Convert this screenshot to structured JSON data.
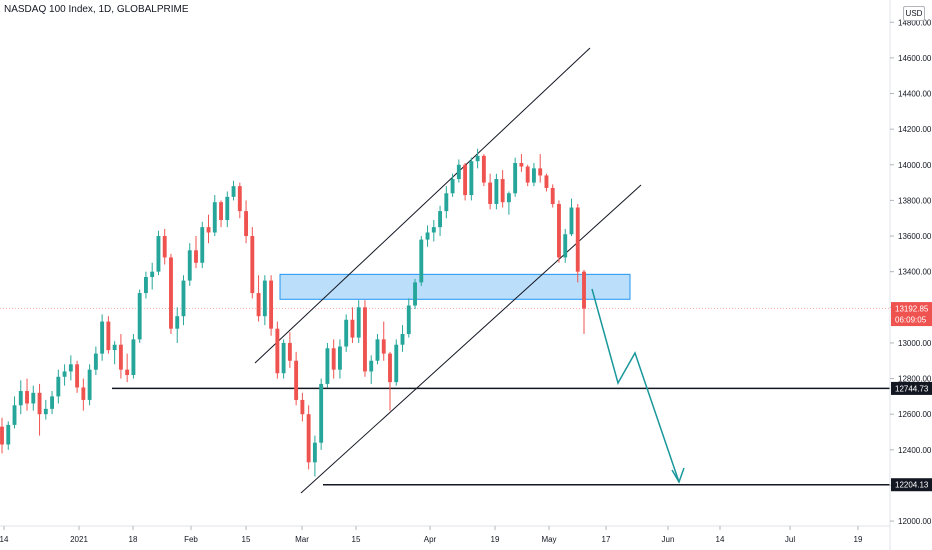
{
  "header": {
    "title": "NASDAQ 100 Index, 1D, GLOBALPRIME",
    "currency": "USD"
  },
  "chart_data": {
    "type": "candlestick",
    "y_ticks": [
      "14800.00",
      "14600.00",
      "14400.00",
      "14200.00",
      "14000.00",
      "13800.00",
      "13600.00",
      "13400.00",
      "13200.00",
      "13000.00",
      "12800.00",
      "12600.00",
      "12400.00",
      "12200.00",
      "12000.00"
    ],
    "x_ticks": [
      "14",
      "2021",
      "18",
      "Feb",
      "15",
      "Mar",
      "15",
      "Apr",
      "19",
      "May",
      "17",
      "Jun",
      "14",
      "Jul",
      "19"
    ],
    "ylim": [
      11950,
      14880
    ],
    "price_tag": {
      "value": "13192.85",
      "countdown": "06:09:05"
    },
    "level_tags": [
      "12744.73",
      "12204.13"
    ],
    "levels": [
      12744.73,
      12204.13
    ],
    "supply_zone": [
      13245,
      13385
    ],
    "colors": {
      "up": "#26a69a",
      "down": "#ef5350",
      "zone": "#bbdefb",
      "zone_border": "#2196f3",
      "projection": "#19979b"
    },
    "candles": [
      [
        12530,
        12580,
        12380,
        12430
      ],
      [
        12430,
        12560,
        12400,
        12540
      ],
      [
        12540,
        12700,
        12520,
        12650
      ],
      [
        12650,
        12790,
        12600,
        12730
      ],
      [
        12730,
        12800,
        12620,
        12660
      ],
      [
        12660,
        12760,
        12620,
        12720
      ],
      [
        12720,
        12770,
        12480,
        12600
      ],
      [
        12600,
        12680,
        12570,
        12630
      ],
      [
        12630,
        12730,
        12600,
        12700
      ],
      [
        12700,
        12850,
        12660,
        12810
      ],
      [
        12810,
        12880,
        12760,
        12840
      ],
      [
        12840,
        12930,
        12790,
        12880
      ],
      [
        12880,
        12900,
        12720,
        12750
      ],
      [
        12750,
        12800,
        12620,
        12680
      ],
      [
        12680,
        12880,
        12650,
        12850
      ],
      [
        12850,
        12980,
        12820,
        12940
      ],
      [
        12940,
        13160,
        12900,
        13120
      ],
      [
        13120,
        13150,
        12940,
        12960
      ],
      [
        12960,
        13010,
        12880,
        12990
      ],
      [
        12990,
        13050,
        12800,
        12850
      ],
      [
        12850,
        12940,
        12780,
        12820
      ],
      [
        12820,
        13050,
        12800,
        13020
      ],
      [
        13020,
        13300,
        13000,
        13280
      ],
      [
        13280,
        13400,
        13250,
        13370
      ],
      [
        13370,
        13450,
        13300,
        13400
      ],
      [
        13400,
        13630,
        13380,
        13600
      ],
      [
        13600,
        13640,
        13440,
        13480
      ],
      [
        13480,
        13500,
        13050,
        13080
      ],
      [
        13080,
        13200,
        13000,
        13150
      ],
      [
        13150,
        13380,
        13100,
        13350
      ],
      [
        13350,
        13560,
        13320,
        13520
      ],
      [
        13520,
        13600,
        13420,
        13450
      ],
      [
        13450,
        13680,
        13420,
        13650
      ],
      [
        13650,
        13720,
        13560,
        13620
      ],
      [
        13620,
        13830,
        13600,
        13790
      ],
      [
        13790,
        13800,
        13650,
        13690
      ],
      [
        13690,
        13850,
        13650,
        13820
      ],
      [
        13820,
        13910,
        13800,
        13880
      ],
      [
        13880,
        13900,
        13700,
        13740
      ],
      [
        13740,
        13800,
        13560,
        13600
      ],
      [
        13600,
        13650,
        13250,
        13280
      ],
      [
        13280,
        13380,
        13120,
        13150
      ],
      [
        13150,
        13380,
        13100,
        13350
      ],
      [
        13350,
        13380,
        13040,
        13080
      ],
      [
        13080,
        13120,
        12800,
        12830
      ],
      [
        12830,
        13020,
        12800,
        13000
      ],
      [
        13000,
        13060,
        12860,
        12900
      ],
      [
        12900,
        12950,
        12650,
        12680
      ],
      [
        12680,
        12720,
        12560,
        12600
      ],
      [
        12600,
        12650,
        12290,
        12330
      ],
      [
        12330,
        12480,
        12250,
        12440
      ],
      [
        12440,
        12800,
        12400,
        12770
      ],
      [
        12770,
        13000,
        12750,
        12970
      ],
      [
        12970,
        13020,
        12800,
        12850
      ],
      [
        12850,
        13020,
        12800,
        12980
      ],
      [
        12980,
        13160,
        12950,
        13130
      ],
      [
        13130,
        13200,
        13000,
        13030
      ],
      [
        13030,
        13240,
        13000,
        13200
      ],
      [
        13200,
        13240,
        12810,
        12840
      ],
      [
        12840,
        12930,
        12770,
        12900
      ],
      [
        12900,
        13050,
        12880,
        13020
      ],
      [
        13020,
        13120,
        12900,
        12940
      ],
      [
        12940,
        12950,
        12620,
        12780
      ],
      [
        12780,
        13020,
        12760,
        12990
      ],
      [
        12990,
        13100,
        12950,
        13050
      ],
      [
        13050,
        13250,
        13030,
        13210
      ],
      [
        13210,
        13360,
        13190,
        13340
      ],
      [
        13340,
        13600,
        13320,
        13580
      ],
      [
        13580,
        13660,
        13540,
        13620
      ],
      [
        13620,
        13690,
        13570,
        13650
      ],
      [
        13650,
        13770,
        13600,
        13740
      ],
      [
        13740,
        13880,
        13700,
        13840
      ],
      [
        13840,
        13950,
        13820,
        13920
      ],
      [
        13920,
        14030,
        13900,
        14000
      ],
      [
        14000,
        14010,
        13800,
        13830
      ],
      [
        13830,
        14040,
        13800,
        14020
      ],
      [
        14020,
        14090,
        13980,
        14050
      ],
      [
        14050,
        14060,
        13880,
        13900
      ],
      [
        13900,
        13950,
        13750,
        13780
      ],
      [
        13780,
        13950,
        13750,
        13920
      ],
      [
        13920,
        13970,
        13760,
        13790
      ],
      [
        13790,
        13850,
        13720,
        13840
      ],
      [
        13840,
        14040,
        13820,
        14010
      ],
      [
        14010,
        14060,
        13960,
        13990
      ],
      [
        13990,
        14000,
        13880,
        13900
      ],
      [
        13900,
        14010,
        13880,
        13980
      ],
      [
        13980,
        14060,
        13900,
        13940
      ],
      [
        13940,
        13950,
        13850,
        13870
      ],
      [
        13870,
        13890,
        13760,
        13780
      ],
      [
        13780,
        13800,
        13450,
        13480
      ],
      [
        13480,
        13640,
        13450,
        13610
      ],
      [
        13610,
        13810,
        13600,
        13760
      ],
      [
        13760,
        13780,
        13340,
        13400
      ],
      [
        13400,
        13410,
        13050,
        13192.85
      ]
    ]
  }
}
